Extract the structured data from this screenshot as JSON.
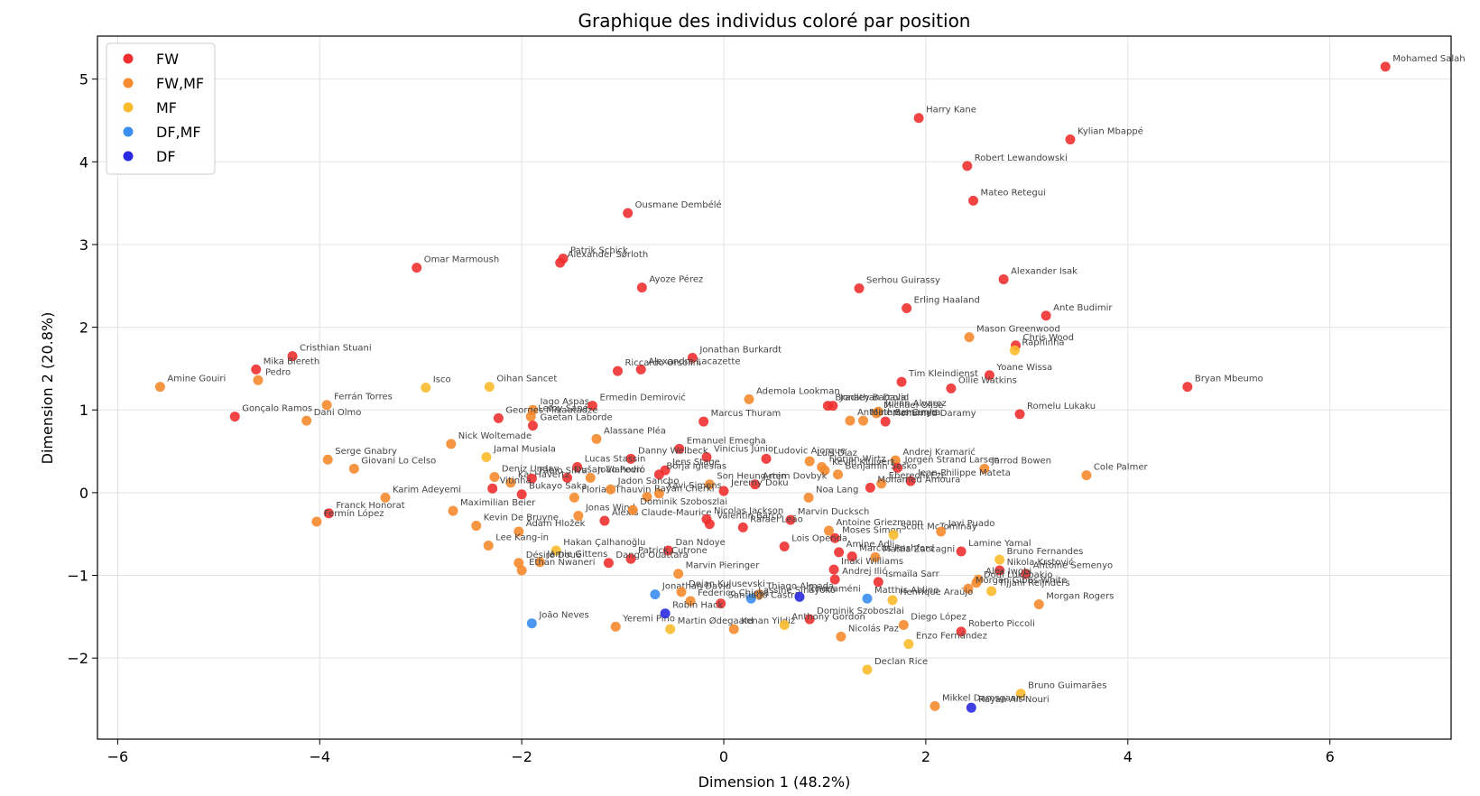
{
  "chart_data": {
    "type": "scatter",
    "title": "Graphique des individus coloré par position",
    "xlabel": "Dimension 1 (48.2%)",
    "ylabel": "Dimension 2 (20.8%)",
    "xlim": [
      -6.2,
      7.2
    ],
    "ylim": [
      -2.98,
      5.52
    ],
    "xticks": [
      -6,
      -4,
      -2,
      0,
      2,
      4,
      6
    ],
    "yticks": [
      -2,
      -1,
      0,
      1,
      2,
      3,
      4,
      5
    ],
    "xtick_labels": [
      "−6",
      "−4",
      "−2",
      "0",
      "2",
      "4",
      "6"
    ],
    "ytick_labels": [
      "−2",
      "−1",
      "0",
      "1",
      "2",
      "3",
      "4",
      "5"
    ],
    "grid": true,
    "legend_position": "top-left",
    "legend": [
      {
        "name": "FW",
        "color": "#f03030"
      },
      {
        "name": "FW,MF",
        "color": "#f58a2e"
      },
      {
        "name": "MF",
        "color": "#fbbb2e"
      },
      {
        "name": "DF,MF",
        "color": "#3a8ef0"
      },
      {
        "name": "DF",
        "color": "#2a2ae0"
      }
    ],
    "points": [
      {
        "label": "Mohamed Salah",
        "x": 6.55,
        "y": 5.15,
        "pos": "FW"
      },
      {
        "label": "Harry Kane",
        "x": 1.93,
        "y": 4.53,
        "pos": "FW"
      },
      {
        "label": "Kylian Mbappé",
        "x": 3.43,
        "y": 4.27,
        "pos": "FW"
      },
      {
        "label": "Robert Lewandowski",
        "x": 2.41,
        "y": 3.95,
        "pos": "FW"
      },
      {
        "label": "Mateo Retegui",
        "x": 2.47,
        "y": 3.53,
        "pos": "FW"
      },
      {
        "label": "Ousmane Dembélé",
        "x": -0.95,
        "y": 3.38,
        "pos": "FW"
      },
      {
        "label": "Patrik Schick",
        "x": -1.59,
        "y": 2.83,
        "pos": "FW"
      },
      {
        "label": "Alexander Sørloth",
        "x": -1.62,
        "y": 2.78,
        "pos": "FW"
      },
      {
        "label": "Omar Marmoush",
        "x": -3.04,
        "y": 2.72,
        "pos": "FW"
      },
      {
        "label": "Ayoze Pérez",
        "x": -0.81,
        "y": 2.48,
        "pos": "FW"
      },
      {
        "label": "Serhou Guirassy",
        "x": 1.34,
        "y": 2.47,
        "pos": "FW"
      },
      {
        "label": "Alexander Isak",
        "x": 2.77,
        "y": 2.58,
        "pos": "FW"
      },
      {
        "label": "Erling Haaland",
        "x": 1.81,
        "y": 2.23,
        "pos": "FW"
      },
      {
        "label": "Ante Budimir",
        "x": 3.19,
        "y": 2.14,
        "pos": "FW"
      },
      {
        "label": "Mason Greenwood",
        "x": 2.43,
        "y": 1.88,
        "pos": "FW,MF"
      },
      {
        "label": "Chris Wood",
        "x": 2.89,
        "y": 1.78,
        "pos": "FW"
      },
      {
        "label": "Raphinha",
        "x": 2.88,
        "y": 1.72,
        "pos": "MF"
      },
      {
        "label": "Cristhian Stuani",
        "x": -4.27,
        "y": 1.65,
        "pos": "FW"
      },
      {
        "label": "Jonathan Burkardt",
        "x": -0.31,
        "y": 1.63,
        "pos": "FW"
      },
      {
        "label": "Mika Biereth",
        "x": -4.63,
        "y": 1.49,
        "pos": "FW"
      },
      {
        "label": "Pedro",
        "x": -4.61,
        "y": 1.36,
        "pos": "FW,MF"
      },
      {
        "label": "Alexandre Lacazette",
        "x": -0.82,
        "y": 1.49,
        "pos": "FW"
      },
      {
        "label": "Riccardo Orsolini",
        "x": -1.05,
        "y": 1.47,
        "pos": "FW"
      },
      {
        "label": "Yoane Wissa",
        "x": 2.63,
        "y": 1.42,
        "pos": "FW"
      },
      {
        "label": "Tim Kleindienst",
        "x": 1.76,
        "y": 1.34,
        "pos": "FW"
      },
      {
        "label": "Ollie Watkins",
        "x": 2.25,
        "y": 1.26,
        "pos": "FW"
      },
      {
        "label": "Bryan Mbeumo",
        "x": 4.59,
        "y": 1.28,
        "pos": "FW"
      },
      {
        "label": "Amine Gouiri",
        "x": -5.58,
        "y": 1.28,
        "pos": "FW,MF"
      },
      {
        "label": "Isco",
        "x": -2.95,
        "y": 1.27,
        "pos": "MF"
      },
      {
        "label": "Oihan Sancet",
        "x": -2.32,
        "y": 1.28,
        "pos": "MF"
      },
      {
        "label": "Ademola Lookman",
        "x": 0.25,
        "y": 1.13,
        "pos": "FW,MF"
      },
      {
        "label": "Bradley Barcola",
        "x": 1.03,
        "y": 1.05,
        "pos": "FW"
      },
      {
        "label": "Jonathan David",
        "x": 1.08,
        "y": 1.05,
        "pos": "FW"
      },
      {
        "label": "Ferrán Torres",
        "x": -3.93,
        "y": 1.06,
        "pos": "FW,MF"
      },
      {
        "label": "Iago Aspas",
        "x": -1.89,
        "y": 1.0,
        "pos": "FW,MF"
      },
      {
        "label": "Ermedin Demirović",
        "x": -1.3,
        "y": 1.05,
        "pos": "FW"
      },
      {
        "label": "Julián Alvarez",
        "x": 1.53,
        "y": 0.98,
        "pos": "FW,MF"
      },
      {
        "label": "Michael Olise",
        "x": 1.51,
        "y": 0.96,
        "pos": "FW,MF"
      },
      {
        "label": "Romelu Lukaku",
        "x": 2.93,
        "y": 0.95,
        "pos": "FW"
      },
      {
        "label": "Gonçalo Ramos",
        "x": -4.84,
        "y": 0.92,
        "pos": "FW"
      },
      {
        "label": "Marcus Thuram",
        "x": -0.2,
        "y": 0.86,
        "pos": "FW"
      },
      {
        "label": "Dani Olmo",
        "x": -4.13,
        "y": 0.87,
        "pos": "FW,MF"
      },
      {
        "label": "Georges Mikautadze",
        "x": -2.23,
        "y": 0.9,
        "pos": "FW"
      },
      {
        "label": "Leroy Sané",
        "x": -1.91,
        "y": 0.92,
        "pos": "FW,MF"
      },
      {
        "label": "Gaetan Laborde",
        "x": -1.89,
        "y": 0.81,
        "pos": "FW"
      },
      {
        "label": "Antoine Semenyo",
        "x": 1.25,
        "y": 0.87,
        "pos": "FW,MF"
      },
      {
        "label": "Matheus Cunha",
        "x": 1.38,
        "y": 0.87,
        "pos": "FW,MF"
      },
      {
        "label": "Mohamed Daramy",
        "x": 1.6,
        "y": 0.86,
        "pos": "FW"
      },
      {
        "label": "Alassane Pléa",
        "x": -1.26,
        "y": 0.65,
        "pos": "FW,MF"
      },
      {
        "label": "Nick Woltemade",
        "x": -2.7,
        "y": 0.59,
        "pos": "FW,MF"
      },
      {
        "label": "Emanuel Emegha",
        "x": -0.44,
        "y": 0.53,
        "pos": "FW"
      },
      {
        "label": "Jamal Musiala",
        "x": -2.35,
        "y": 0.43,
        "pos": "MF"
      },
      {
        "label": "Vinicius Júnior",
        "x": -0.17,
        "y": 0.43,
        "pos": "FW"
      },
      {
        "label": "Danny Welbeck",
        "x": -0.92,
        "y": 0.41,
        "pos": "FW"
      },
      {
        "label": "Lucas Stassin",
        "x": -1.45,
        "y": 0.31,
        "pos": "FW"
      },
      {
        "label": "Jens Stage",
        "x": -0.58,
        "y": 0.27,
        "pos": "FW"
      },
      {
        "label": "Luis Díaz",
        "x": 0.85,
        "y": 0.38,
        "pos": "FW,MF"
      },
      {
        "label": "Ludovic Ajorque",
        "x": 0.42,
        "y": 0.41,
        "pos": "FW"
      },
      {
        "label": "Serge Gnabry",
        "x": -3.92,
        "y": 0.4,
        "pos": "FW,MF"
      },
      {
        "label": "Giovani Lo Celso",
        "x": -3.66,
        "y": 0.29,
        "pos": "FW,MF"
      },
      {
        "label": "Andrej Kramarić",
        "x": 1.7,
        "y": 0.39,
        "pos": "FW,MF"
      },
      {
        "label": "Jorgen Strand Larsen",
        "x": 1.72,
        "y": 0.3,
        "pos": "FW"
      },
      {
        "label": "Jarrod Bowen",
        "x": 2.58,
        "y": 0.29,
        "pos": "FW,MF"
      },
      {
        "label": "Cole Palmer",
        "x": 3.59,
        "y": 0.21,
        "pos": "FW,MF"
      },
      {
        "label": "Deniz Undav",
        "x": -2.27,
        "y": 0.19,
        "pos": "FW,MF"
      },
      {
        "label": "Dušan Vlahović",
        "x": -1.55,
        "y": 0.18,
        "pos": "FW"
      },
      {
        "label": "João Pedro",
        "x": -1.32,
        "y": 0.18,
        "pos": "FW,MF"
      },
      {
        "label": "Borja Iglesias",
        "x": -0.64,
        "y": 0.22,
        "pos": "FW"
      },
      {
        "label": "Florian Wirtz",
        "x": 0.97,
        "y": 0.31,
        "pos": "FW,MF"
      },
      {
        "label": "Kevin Kluivert",
        "x": 1.0,
        "y": 0.27,
        "pos": "FW,MF"
      },
      {
        "label": "Benjamin Šeško",
        "x": 1.13,
        "y": 0.22,
        "pos": "FW,MF"
      },
      {
        "label": "Kai Havertz",
        "x": -2.11,
        "y": 0.12,
        "pos": "FW,MF"
      },
      {
        "label": "Fábio Silva",
        "x": -1.9,
        "y": 0.17,
        "pos": "FW"
      },
      {
        "label": "Jean-Philippe Mateta",
        "x": 1.85,
        "y": 0.14,
        "pos": "FW"
      },
      {
        "label": "Eberechi Eze",
        "x": 1.56,
        "y": 0.11,
        "pos": "FW,MF"
      },
      {
        "label": "Artem Dovbyk",
        "x": 0.31,
        "y": 0.1,
        "pos": "FW"
      },
      {
        "label": "Son Heung-min",
        "x": -0.14,
        "y": 0.1,
        "pos": "FW,MF"
      },
      {
        "label": "Karim Adeyemi",
        "x": -3.35,
        "y": -0.06,
        "pos": "FW,MF"
      },
      {
        "label": "Vitinha",
        "x": -2.29,
        "y": 0.05,
        "pos": "FW"
      },
      {
        "label": "Florian Thauvin",
        "x": -1.48,
        "y": -0.06,
        "pos": "FW,MF"
      },
      {
        "label": "Xavi Simons",
        "x": -0.64,
        "y": -0.01,
        "pos": "FW,MF"
      },
      {
        "label": "Bukayo Saka",
        "x": -2.0,
        "y": -0.02,
        "pos": "FW"
      },
      {
        "label": "Jadon Sancho",
        "x": -1.12,
        "y": 0.04,
        "pos": "FW,MF"
      },
      {
        "label": "Rayan Cherki",
        "x": -0.76,
        "y": -0.05,
        "pos": "FW,MF"
      },
      {
        "label": "Jeremy Doku",
        "x": 0.0,
        "y": 0.02,
        "pos": "FW"
      },
      {
        "label": "Mohamed Amoura",
        "x": 1.45,
        "y": 0.06,
        "pos": "FW"
      },
      {
        "label": "Noa Lang",
        "x": 0.84,
        "y": -0.06,
        "pos": "FW,MF"
      },
      {
        "label": "Franck Honorat",
        "x": -3.91,
        "y": -0.25,
        "pos": "FW"
      },
      {
        "label": "Fermín López",
        "x": -4.03,
        "y": -0.35,
        "pos": "FW,MF"
      },
      {
        "label": "Maximilian Beier",
        "x": -2.68,
        "y": -0.22,
        "pos": "FW,MF"
      },
      {
        "label": "Kevin De Bruyne",
        "x": -2.45,
        "y": -0.4,
        "pos": "FW,MF"
      },
      {
        "label": "Adam Hložek",
        "x": -2.03,
        "y": -0.47,
        "pos": "FW,MF"
      },
      {
        "label": "Alexis Claude-Maurice",
        "x": -1.18,
        "y": -0.34,
        "pos": "FW"
      },
      {
        "label": "Jonas Wind",
        "x": -1.44,
        "y": -0.28,
        "pos": "FW,MF"
      },
      {
        "label": "Dominik Szoboszlai",
        "x": -0.9,
        "y": -0.21,
        "pos": "FW,MF"
      },
      {
        "label": "Nicolas Jackson",
        "x": -0.17,
        "y": -0.32,
        "pos": "FW"
      },
      {
        "label": "Valentin Barco",
        "x": -0.14,
        "y": -0.38,
        "pos": "FW"
      },
      {
        "label": "Marvin Ducksch",
        "x": 0.66,
        "y": -0.33,
        "pos": "FW"
      },
      {
        "label": "Moses Simon",
        "x": 1.1,
        "y": -0.55,
        "pos": "FW"
      },
      {
        "label": "Scott McTominay",
        "x": 1.68,
        "y": -0.51,
        "pos": "MF"
      },
      {
        "label": "Antoine Griezmann",
        "x": 1.04,
        "y": -0.46,
        "pos": "FW,MF"
      },
      {
        "label": "Javi Puado",
        "x": 2.15,
        "y": -0.47,
        "pos": "FW,MF"
      },
      {
        "label": "Rafael Leão",
        "x": 0.19,
        "y": -0.42,
        "pos": "FW"
      },
      {
        "label": "Lee Kang-in",
        "x": -2.33,
        "y": -0.64,
        "pos": "FW,MF"
      },
      {
        "label": "Hakan Çalhanoğlu",
        "x": -1.66,
        "y": -0.7,
        "pos": "MF"
      },
      {
        "label": "Dan Ndoye",
        "x": -0.55,
        "y": -0.7,
        "pos": "FW"
      },
      {
        "label": "Lois Openda",
        "x": 0.6,
        "y": -0.65,
        "pos": "FW"
      },
      {
        "label": "Lamine Yamal",
        "x": 2.35,
        "y": -0.71,
        "pos": "FW"
      },
      {
        "label": "Bruno Fernandes",
        "x": 2.73,
        "y": -0.81,
        "pos": "MF"
      },
      {
        "label": "Jamie Gittens",
        "x": -1.82,
        "y": -0.84,
        "pos": "FW,MF"
      },
      {
        "label": "Patrick Cutrone",
        "x": -0.92,
        "y": -0.8,
        "pos": "FW"
      },
      {
        "label": "Amine Adli",
        "x": 1.14,
        "y": -0.72,
        "pos": "FW"
      },
      {
        "label": "Marcus Rashford",
        "x": 1.27,
        "y": -0.77,
        "pos": "FW"
      },
      {
        "label": "Mattia Zaccagni",
        "x": 1.5,
        "y": -0.78,
        "pos": "FW,MF"
      },
      {
        "label": "Désiré Doué",
        "x": -2.03,
        "y": -0.85,
        "pos": "FW,MF"
      },
      {
        "label": "Dango Ouattara",
        "x": -1.14,
        "y": -0.85,
        "pos": "FW"
      },
      {
        "label": "Nikola Krstović",
        "x": 2.73,
        "y": -0.94,
        "pos": "FW"
      },
      {
        "label": "Antoine Semenyo",
        "x": 2.99,
        "y": -0.98,
        "pos": "FW"
      },
      {
        "label": "Alex Iwobi",
        "x": 2.52,
        "y": -1.05,
        "pos": "FW,MF"
      },
      {
        "label": "Ethan Nwaneri",
        "x": -2.0,
        "y": -0.94,
        "pos": "FW,MF"
      },
      {
        "label": "Ismaïla Sarr",
        "x": 1.53,
        "y": -1.08,
        "pos": "FW"
      },
      {
        "label": "Marvin Pieringer",
        "x": -0.45,
        "y": -0.98,
        "pos": "FW,MF"
      },
      {
        "label": "Inaki Williams",
        "x": 1.09,
        "y": -0.93,
        "pos": "FW"
      },
      {
        "label": "Andrej Ilić",
        "x": 1.1,
        "y": -1.05,
        "pos": "FW"
      },
      {
        "label": "Dodi Lukébakio",
        "x": 2.5,
        "y": -1.09,
        "pos": "FW,MF"
      },
      {
        "label": "Tijjani Reijnders",
        "x": 2.65,
        "y": -1.19,
        "pos": "MF"
      },
      {
        "label": "Morgan Gibbs-White",
        "x": 2.42,
        "y": -1.16,
        "pos": "FW,MF"
      },
      {
        "label": "Morgan Rogers",
        "x": 3.12,
        "y": -1.35,
        "pos": "FW,MF"
      },
      {
        "label": "Jonathan David",
        "x": -0.68,
        "y": -1.23,
        "pos": "DF,MF"
      },
      {
        "label": "Dejan Kulusevski",
        "x": -0.42,
        "y": -1.2,
        "pos": "FW,MF"
      },
      {
        "label": "Thiago Almada",
        "x": 0.35,
        "y": -1.23,
        "pos": "FW,MF"
      },
      {
        "label": "Lassine Sinayoko",
        "x": 0.27,
        "y": -1.28,
        "pos": "DF,MF"
      },
      {
        "label": "Federico Chiesa",
        "x": -0.33,
        "y": -1.31,
        "pos": "FW,MF"
      },
      {
        "label": "Santiago Castro",
        "x": -0.03,
        "y": -1.34,
        "pos": "FW"
      },
      {
        "label": "Henrique Araújo",
        "x": 1.67,
        "y": -1.3,
        "pos": "MF"
      },
      {
        "label": "Matthis Abline",
        "x": 1.42,
        "y": -1.28,
        "pos": "DF,MF"
      },
      {
        "label": "Nicolás Paz",
        "x": 1.16,
        "y": -1.74,
        "pos": "FW,MF"
      },
      {
        "label": "Dominik Szoboszlai",
        "x": 0.85,
        "y": -1.53,
        "pos": "FW"
      },
      {
        "label": "João Neves",
        "x": -1.9,
        "y": -1.58,
        "pos": "DF,MF"
      },
      {
        "label": "Yeremi Pino",
        "x": -1.07,
        "y": -1.62,
        "pos": "FW,MF"
      },
      {
        "label": "Robin Hack",
        "x": -0.58,
        "y": -1.46,
        "pos": "DF"
      },
      {
        "label": "Martin Ødegaard",
        "x": -0.53,
        "y": -1.65,
        "pos": "MF"
      },
      {
        "label": "Kenan Yildiz",
        "x": 0.1,
        "y": -1.65,
        "pos": "FW,MF"
      },
      {
        "label": "Anthony Gordon",
        "x": 0.6,
        "y": -1.6,
        "pos": "MF"
      },
      {
        "label": "Diego López",
        "x": 1.78,
        "y": -1.6,
        "pos": "FW,MF"
      },
      {
        "label": "Roberto Piccoli",
        "x": 2.35,
        "y": -1.68,
        "pos": "FW"
      },
      {
        "label": "Enzo Fernández",
        "x": 1.83,
        "y": -1.83,
        "pos": "MF"
      },
      {
        "label": "Declan Rice",
        "x": 1.42,
        "y": -2.14,
        "pos": "MF"
      },
      {
        "label": "Bruno Guimarães",
        "x": 2.94,
        "y": -2.43,
        "pos": "MF"
      },
      {
        "label": "Mikkel Damsgaard",
        "x": 2.09,
        "y": -2.58,
        "pos": "FW,MF"
      },
      {
        "label": "Rayan Ait-Nouri",
        "x": 2.45,
        "y": -2.6,
        "pos": "DF"
      },
      {
        "label": "Tchouaméni",
        "x": 0.75,
        "y": -1.26,
        "pos": "DF"
      }
    ]
  }
}
